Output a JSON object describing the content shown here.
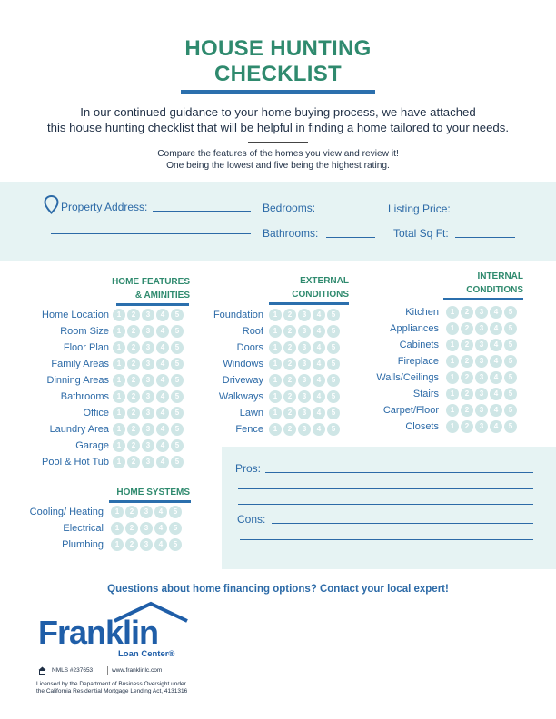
{
  "title": {
    "line1": "HOUSE HUNTING",
    "line2": "CHECKLIST"
  },
  "intro": {
    "line1": "In our continued guidance to your home buying process, we have attached",
    "line2": "this house hunting checklist that will be helpful in finding a home tailored to your needs."
  },
  "sub": {
    "line1": "Compare the features of the homes you view and review it!",
    "line2": "One being the lowest and five being the highest rating."
  },
  "property": {
    "address": "Property Address:",
    "bedrooms": "Bedrooms:",
    "listing_price": "Listing Price:",
    "bathrooms": "Bathrooms:",
    "total_sq_ft": "Total Sq Ft:"
  },
  "rating_scale": [
    "1",
    "2",
    "3",
    "4",
    "5"
  ],
  "sections": {
    "home_features": {
      "title_line1": "HOME FEATURES",
      "title_line2": "& AMINITIES",
      "items": [
        "Home Location",
        "Room Size",
        "Floor Plan",
        "Family Areas",
        "Dinning Areas",
        "Bathrooms",
        "Office",
        "Laundry Area",
        "Garage",
        "Pool & Hot Tub"
      ]
    },
    "home_systems": {
      "title": "HOME SYSTEMS",
      "items": [
        "Cooling/ Heating",
        "Electrical",
        "Plumbing"
      ]
    },
    "external": {
      "title_line1": "EXTERNAL",
      "title_line2": "CONDITIONS",
      "items": [
        "Foundation",
        "Roof",
        "Doors",
        "Windows",
        "Driveway",
        "Walkways",
        "Lawn",
        "Fence"
      ]
    },
    "internal": {
      "title_line1": "INTERNAL",
      "title_line2": "CONDITIONS",
      "items": [
        "Kitchen",
        "Appliances",
        "Cabinets",
        "Fireplace",
        "Walls/Ceilings",
        "Stairs",
        "Carpet/Floor",
        "Closets"
      ]
    }
  },
  "pros_cons": {
    "pros": "Pros:",
    "cons": "Cons:"
  },
  "contact": "Questions about home financing options? Contact your local expert!",
  "footer": {
    "brand": "Franklin",
    "brand_sub": "Loan Center®",
    "nmls": "NMLS #237653",
    "website": "www.franklinlc.com",
    "license_line1": "Licensed by the Department of Business Oversight under",
    "license_line2": "the California Residential Mortgage Lending Act, 4131316"
  },
  "colors": {
    "heading_green": "#2f8a6e",
    "accent_blue": "#2b6fad",
    "band": "#e6f3f3",
    "rating_dot": "#cfe6e6"
  }
}
